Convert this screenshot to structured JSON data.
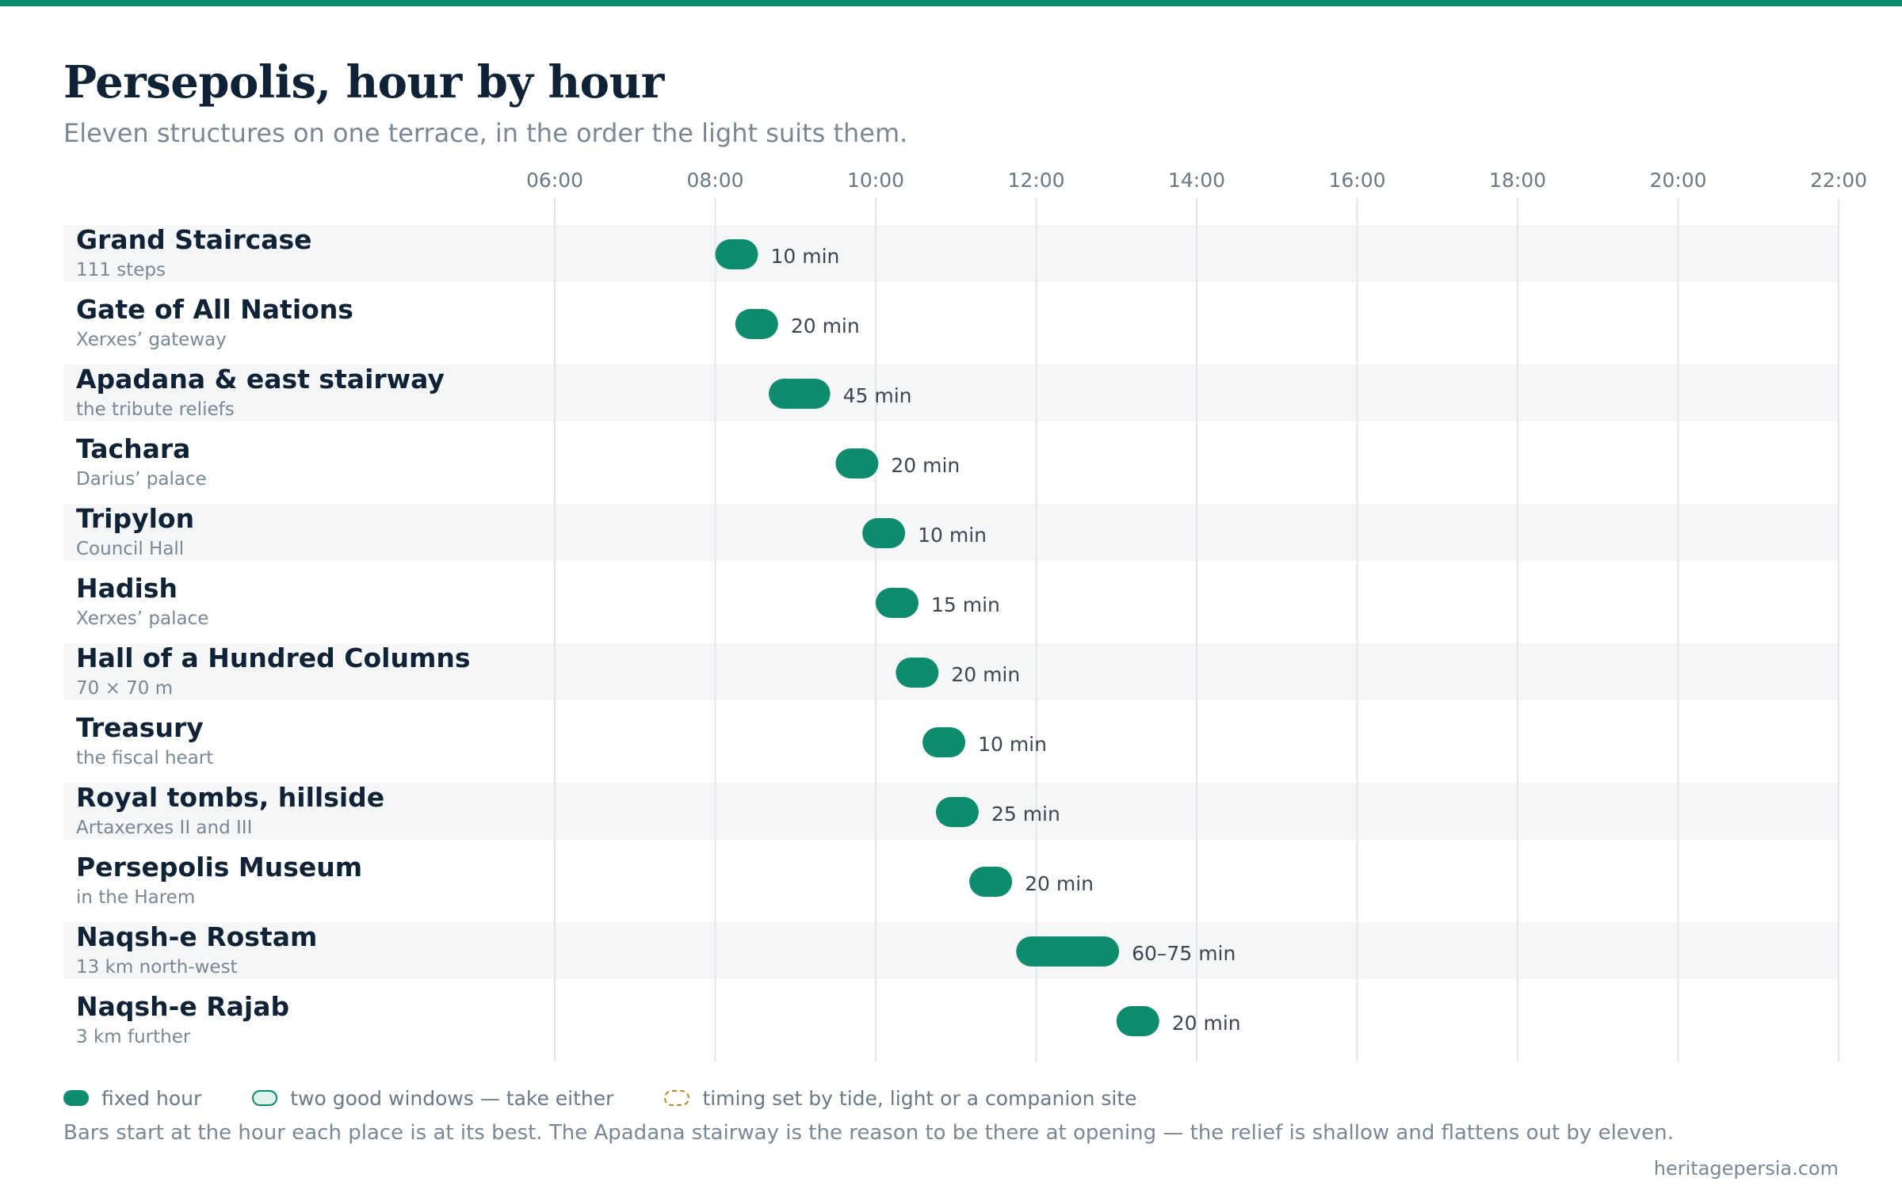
{
  "colors": {
    "accent": "#0f8c6e",
    "top_bar": "#0f8c6e",
    "stripe": "#f5f6f7",
    "grid": "#e3e6e9"
  },
  "header": {
    "title": "Persepolis, hour by hour",
    "subtitle": "Eleven structures on one terrace, in the order the light suits them."
  },
  "chart_data": {
    "type": "bar",
    "orientation": "horizontal-timeline",
    "x_axis": {
      "ticks": [
        "06:00",
        "08:00",
        "10:00",
        "12:00",
        "14:00",
        "16:00",
        "18:00",
        "20:00",
        "22:00"
      ],
      "range": [
        "06:00",
        "22:00"
      ]
    },
    "grid": true,
    "rows": [
      {
        "name": "Grand Staircase",
        "note": "111 steps",
        "start": "08:00",
        "end": "08:32",
        "label": "10 min",
        "kind": "fixed"
      },
      {
        "name": "Gate of All Nations",
        "note": "Xerxes’ gateway",
        "start": "08:15",
        "end": "08:47",
        "label": "20 min",
        "kind": "fixed"
      },
      {
        "name": "Apadana & east stairway",
        "note": "the tribute reliefs",
        "start": "08:40",
        "end": "09:26",
        "label": "45 min",
        "kind": "fixed"
      },
      {
        "name": "Tachara",
        "note": "Darius’ palace",
        "start": "09:30",
        "end": "10:02",
        "label": "20 min",
        "kind": "fixed"
      },
      {
        "name": "Tripylon",
        "note": "Council Hall",
        "start": "09:50",
        "end": "10:22",
        "label": "10 min",
        "kind": "fixed"
      },
      {
        "name": "Hadish",
        "note": "Xerxes’ palace",
        "start": "10:00",
        "end": "10:32",
        "label": "15 min",
        "kind": "fixed"
      },
      {
        "name": "Hall of a Hundred Columns",
        "note": "70 × 70 m",
        "start": "10:15",
        "end": "10:47",
        "label": "20 min",
        "kind": "fixed"
      },
      {
        "name": "Treasury",
        "note": "the fiscal heart",
        "start": "10:35",
        "end": "11:07",
        "label": "10 min",
        "kind": "fixed"
      },
      {
        "name": "Royal tombs, hillside",
        "note": "Artaxerxes II and III",
        "start": "10:45",
        "end": "11:17",
        "label": "25 min",
        "kind": "fixed"
      },
      {
        "name": "Persepolis Museum",
        "note": "in the Harem",
        "start": "11:10",
        "end": "11:42",
        "label": "20 min",
        "kind": "fixed"
      },
      {
        "name": "Naqsh-e Rostam",
        "note": "13 km north-west",
        "start": "11:45",
        "end": "13:02",
        "label": "60–75 min",
        "kind": "fixed"
      },
      {
        "name": "Naqsh-e Rajab",
        "note": "3 km further",
        "start": "13:00",
        "end": "13:32",
        "label": "20 min",
        "kind": "fixed"
      }
    ]
  },
  "legend": {
    "fixed": "fixed hour",
    "two_windows": "two good windows — take either",
    "flexible": "timing set by tide, light or a companion site"
  },
  "footnote": "Bars start at the hour each place is at its best. The Apadana stairway is the reason to be there at opening — the relief is shallow and flattens out by eleven.",
  "credit": "heritagepersia.com"
}
